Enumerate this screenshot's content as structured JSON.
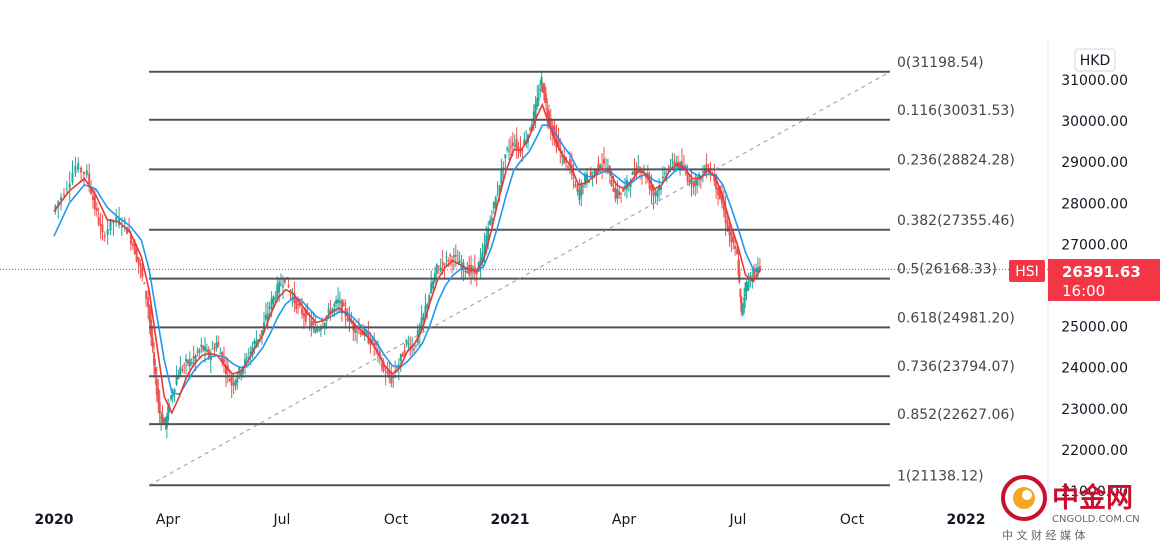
{
  "colors": {
    "fib_line": "#50535e",
    "trend": "#9598a1",
    "ma_fast": "#e53935",
    "ma_slow": "#2196f3",
    "candle_up": "#26a69a",
    "candle_down": "#ef5350",
    "last_price_bg": "#f23645",
    "watermark": "#c8102e"
  },
  "chart_data": {
    "type": "line",
    "symbol_badge": "HSI",
    "currency": "HKD",
    "last_price": "26391.63",
    "countdown": "16:00",
    "y_ticks": [
      "31000.00",
      "30000.00",
      "29000.00",
      "28000.00",
      "27000.00",
      "25000.00",
      "24000.00",
      "23000.00",
      "22000.00",
      "21000.00"
    ],
    "y_tick_values": [
      31000,
      30000,
      29000,
      28000,
      27000,
      25000,
      24000,
      23000,
      22000,
      21000
    ],
    "x_ticks": [
      {
        "label": "2020",
        "t": 0.0,
        "bold": true
      },
      {
        "label": "Apr",
        "t": 3.0
      },
      {
        "label": "Jul",
        "t": 6.0
      },
      {
        "label": "Oct",
        "t": 9.0
      },
      {
        "label": "2021",
        "t": 12.0,
        "bold": true
      },
      {
        "label": "Apr",
        "t": 15.0
      },
      {
        "label": "Jul",
        "t": 18.0
      },
      {
        "label": "Oct",
        "t": 21.0
      },
      {
        "label": "2022",
        "t": 24.0,
        "bold": true
      }
    ],
    "ylim": [
      20950,
      32150
    ],
    "xlim_months": [
      -0.1,
      26.0
    ],
    "fib_levels": [
      {
        "ratio": "0",
        "value": "31198.54"
      },
      {
        "ratio": "0.116",
        "value": "30031.53"
      },
      {
        "ratio": "0.236",
        "value": "28824.28"
      },
      {
        "ratio": "0.382",
        "value": "27355.46"
      },
      {
        "ratio": "0.5",
        "value": "26168.33"
      },
      {
        "ratio": "0.618",
        "value": "24981.20"
      },
      {
        "ratio": "0.736",
        "value": "23794.07"
      },
      {
        "ratio": "0.852",
        "value": "22627.06"
      },
      {
        "ratio": "1",
        "value": "21138.12"
      }
    ],
    "fib_x_range": [
      2.5,
      22.0
    ],
    "trend_line": {
      "from": [
        2.5,
        21138.12
      ],
      "to": [
        22.0,
        31198.54
      ]
    },
    "price_series": [
      [
        0.0,
        27800
      ],
      [
        0.3,
        28300
      ],
      [
        0.6,
        28900
      ],
      [
        0.9,
        28700
      ],
      [
        1.1,
        27900
      ],
      [
        1.3,
        27200
      ],
      [
        1.6,
        27600
      ],
      [
        1.9,
        27500
      ],
      [
        2.1,
        27000
      ],
      [
        2.3,
        26400
      ],
      [
        2.5,
        25500
      ],
      [
        2.65,
        24000
      ],
      [
        2.8,
        22900
      ],
      [
        2.95,
        22600
      ],
      [
        3.1,
        23300
      ],
      [
        3.3,
        23900
      ],
      [
        3.5,
        24100
      ],
      [
        3.7,
        24200
      ],
      [
        3.9,
        24500
      ],
      [
        4.1,
        24300
      ],
      [
        4.3,
        24600
      ],
      [
        4.5,
        24100
      ],
      [
        4.7,
        23600
      ],
      [
        4.9,
        23900
      ],
      [
        5.1,
        24200
      ],
      [
        5.3,
        24600
      ],
      [
        5.5,
        24900
      ],
      [
        5.7,
        25500
      ],
      [
        5.9,
        25900
      ],
      [
        6.1,
        26200
      ],
      [
        6.3,
        25700
      ],
      [
        6.5,
        25400
      ],
      [
        6.7,
        25200
      ],
      [
        6.9,
        24900
      ],
      [
        7.1,
        25100
      ],
      [
        7.3,
        25400
      ],
      [
        7.5,
        25600
      ],
      [
        7.7,
        25300
      ],
      [
        7.9,
        25000
      ],
      [
        8.1,
        24900
      ],
      [
        8.3,
        24700
      ],
      [
        8.5,
        24500
      ],
      [
        8.7,
        23900
      ],
      [
        8.9,
        23700
      ],
      [
        9.1,
        24100
      ],
      [
        9.3,
        24600
      ],
      [
        9.5,
        24500
      ],
      [
        9.7,
        25100
      ],
      [
        9.9,
        25800
      ],
      [
        10.1,
        26400
      ],
      [
        10.3,
        26600
      ],
      [
        10.5,
        26700
      ],
      [
        10.7,
        26500
      ],
      [
        10.9,
        26400
      ],
      [
        11.1,
        26300
      ],
      [
        11.3,
        26700
      ],
      [
        11.5,
        27600
      ],
      [
        11.7,
        28300
      ],
      [
        11.9,
        29200
      ],
      [
        12.1,
        29500
      ],
      [
        12.3,
        29300
      ],
      [
        12.5,
        29700
      ],
      [
        12.7,
        30300
      ],
      [
        12.85,
        31000
      ],
      [
        13.0,
        30200
      ],
      [
        13.2,
        29600
      ],
      [
        13.4,
        29100
      ],
      [
        13.6,
        28900
      ],
      [
        13.8,
        28200
      ],
      [
        14.0,
        28600
      ],
      [
        14.2,
        28700
      ],
      [
        14.4,
        29000
      ],
      [
        14.6,
        28800
      ],
      [
        14.8,
        28200
      ],
      [
        15.0,
        28300
      ],
      [
        15.2,
        28600
      ],
      [
        15.4,
        28900
      ],
      [
        15.6,
        28700
      ],
      [
        15.8,
        28200
      ],
      [
        16.0,
        28500
      ],
      [
        16.2,
        28900
      ],
      [
        16.4,
        29000
      ],
      [
        16.6,
        28800
      ],
      [
        16.8,
        28500
      ],
      [
        17.0,
        28600
      ],
      [
        17.2,
        28900
      ],
      [
        17.4,
        28600
      ],
      [
        17.6,
        28000
      ],
      [
        17.8,
        27200
      ],
      [
        18.0,
        26700
      ],
      [
        18.1,
        25300
      ],
      [
        18.2,
        25900
      ],
      [
        18.4,
        26300
      ],
      [
        18.6,
        26400
      ]
    ],
    "ma_fast": [
      [
        0.0,
        27800
      ],
      [
        0.4,
        28300
      ],
      [
        0.8,
        28600
      ],
      [
        1.1,
        28200
      ],
      [
        1.4,
        27600
      ],
      [
        1.7,
        27550
      ],
      [
        2.0,
        27300
      ],
      [
        2.3,
        26700
      ],
      [
        2.5,
        25900
      ],
      [
        2.7,
        24600
      ],
      [
        2.9,
        23300
      ],
      [
        3.1,
        22900
      ],
      [
        3.3,
        23300
      ],
      [
        3.5,
        23800
      ],
      [
        3.7,
        24100
      ],
      [
        3.9,
        24300
      ],
      [
        4.1,
        24350
      ],
      [
        4.3,
        24300
      ],
      [
        4.5,
        24050
      ],
      [
        4.7,
        23850
      ],
      [
        4.9,
        23900
      ],
      [
        5.1,
        24150
      ],
      [
        5.3,
        24500
      ],
      [
        5.5,
        24800
      ],
      [
        5.7,
        25300
      ],
      [
        5.9,
        25700
      ],
      [
        6.1,
        25900
      ],
      [
        6.3,
        25800
      ],
      [
        6.5,
        25550
      ],
      [
        6.7,
        25300
      ],
      [
        6.9,
        25100
      ],
      [
        7.1,
        25150
      ],
      [
        7.3,
        25350
      ],
      [
        7.5,
        25450
      ],
      [
        7.7,
        25300
      ],
      [
        7.9,
        25050
      ],
      [
        8.1,
        24900
      ],
      [
        8.3,
        24700
      ],
      [
        8.5,
        24400
      ],
      [
        8.7,
        24050
      ],
      [
        8.9,
        23850
      ],
      [
        9.1,
        24000
      ],
      [
        9.3,
        24400
      ],
      [
        9.5,
        24600
      ],
      [
        9.7,
        24950
      ],
      [
        9.9,
        25600
      ],
      [
        10.1,
        26150
      ],
      [
        10.3,
        26450
      ],
      [
        10.5,
        26600
      ],
      [
        10.7,
        26500
      ],
      [
        10.9,
        26400
      ],
      [
        11.1,
        26350
      ],
      [
        11.3,
        26600
      ],
      [
        11.5,
        27300
      ],
      [
        11.7,
        28100
      ],
      [
        11.9,
        28800
      ],
      [
        12.1,
        29300
      ],
      [
        12.3,
        29300
      ],
      [
        12.5,
        29600
      ],
      [
        12.7,
        30100
      ],
      [
        12.85,
        30400
      ],
      [
        13.0,
        30000
      ],
      [
        13.2,
        29500
      ],
      [
        13.4,
        29150
      ],
      [
        13.6,
        28900
      ],
      [
        13.8,
        28450
      ],
      [
        14.0,
        28500
      ],
      [
        14.2,
        28650
      ],
      [
        14.4,
        28850
      ],
      [
        14.6,
        28800
      ],
      [
        14.8,
        28450
      ],
      [
        15.0,
        28350
      ],
      [
        15.2,
        28550
      ],
      [
        15.4,
        28800
      ],
      [
        15.6,
        28700
      ],
      [
        15.8,
        28350
      ],
      [
        16.0,
        28450
      ],
      [
        16.2,
        28800
      ],
      [
        16.4,
        28950
      ],
      [
        16.6,
        28850
      ],
      [
        16.8,
        28600
      ],
      [
        17.0,
        28600
      ],
      [
        17.2,
        28800
      ],
      [
        17.4,
        28650
      ],
      [
        17.6,
        28150
      ],
      [
        17.8,
        27500
      ],
      [
        18.0,
        26950
      ],
      [
        18.2,
        26250
      ],
      [
        18.4,
        26100
      ],
      [
        18.6,
        26400
      ]
    ],
    "ma_slow": [
      [
        0.0,
        27200
      ],
      [
        0.4,
        28000
      ],
      [
        0.8,
        28450
      ],
      [
        1.1,
        28350
      ],
      [
        1.4,
        27900
      ],
      [
        1.7,
        27650
      ],
      [
        2.0,
        27450
      ],
      [
        2.3,
        27100
      ],
      [
        2.5,
        26400
      ],
      [
        2.7,
        25300
      ],
      [
        2.9,
        24200
      ],
      [
        3.1,
        23400
      ],
      [
        3.3,
        23350
      ],
      [
        3.5,
        23650
      ],
      [
        3.7,
        23950
      ],
      [
        3.9,
        24150
      ],
      [
        4.1,
        24250
      ],
      [
        4.3,
        24300
      ],
      [
        4.5,
        24250
      ],
      [
        4.7,
        24100
      ],
      [
        4.9,
        24000
      ],
      [
        5.1,
        24050
      ],
      [
        5.3,
        24250
      ],
      [
        5.5,
        24500
      ],
      [
        5.7,
        24850
      ],
      [
        5.9,
        25250
      ],
      [
        6.1,
        25550
      ],
      [
        6.3,
        25700
      ],
      [
        6.5,
        25650
      ],
      [
        6.7,
        25450
      ],
      [
        6.9,
        25250
      ],
      [
        7.1,
        25150
      ],
      [
        7.3,
        25250
      ],
      [
        7.5,
        25350
      ],
      [
        7.7,
        25350
      ],
      [
        7.9,
        25200
      ],
      [
        8.1,
        25000
      ],
      [
        8.3,
        24850
      ],
      [
        8.5,
        24600
      ],
      [
        8.7,
        24300
      ],
      [
        8.9,
        24050
      ],
      [
        9.1,
        24000
      ],
      [
        9.3,
        24150
      ],
      [
        9.5,
        24350
      ],
      [
        9.7,
        24600
      ],
      [
        9.9,
        25050
      ],
      [
        10.1,
        25600
      ],
      [
        10.3,
        26000
      ],
      [
        10.5,
        26250
      ],
      [
        10.7,
        26400
      ],
      [
        10.9,
        26400
      ],
      [
        11.1,
        26350
      ],
      [
        11.3,
        26450
      ],
      [
        11.5,
        26900
      ],
      [
        11.7,
        27500
      ],
      [
        11.9,
        28200
      ],
      [
        12.1,
        28800
      ],
      [
        12.3,
        29050
      ],
      [
        12.5,
        29250
      ],
      [
        12.7,
        29600
      ],
      [
        12.85,
        29900
      ],
      [
        13.0,
        29900
      ],
      [
        13.2,
        29700
      ],
      [
        13.4,
        29400
      ],
      [
        13.6,
        29150
      ],
      [
        13.8,
        28800
      ],
      [
        14.0,
        28650
      ],
      [
        14.2,
        28650
      ],
      [
        14.4,
        28750
      ],
      [
        14.6,
        28800
      ],
      [
        14.8,
        28650
      ],
      [
        15.0,
        28500
      ],
      [
        15.2,
        28500
      ],
      [
        15.4,
        28650
      ],
      [
        15.6,
        28700
      ],
      [
        15.8,
        28550
      ],
      [
        16.0,
        28500
      ],
      [
        16.2,
        28650
      ],
      [
        16.4,
        28850
      ],
      [
        16.6,
        28900
      ],
      [
        16.8,
        28750
      ],
      [
        17.0,
        28650
      ],
      [
        17.2,
        28700
      ],
      [
        17.4,
        28700
      ],
      [
        17.6,
        28450
      ],
      [
        17.8,
        27950
      ],
      [
        18.0,
        27400
      ],
      [
        18.2,
        26800
      ],
      [
        18.4,
        26400
      ],
      [
        18.6,
        26350
      ]
    ]
  },
  "watermark": {
    "brand": "中金网",
    "domain": "CNGOLD.COM.CN",
    "tagline": "中 文 财 经 媒 体"
  }
}
